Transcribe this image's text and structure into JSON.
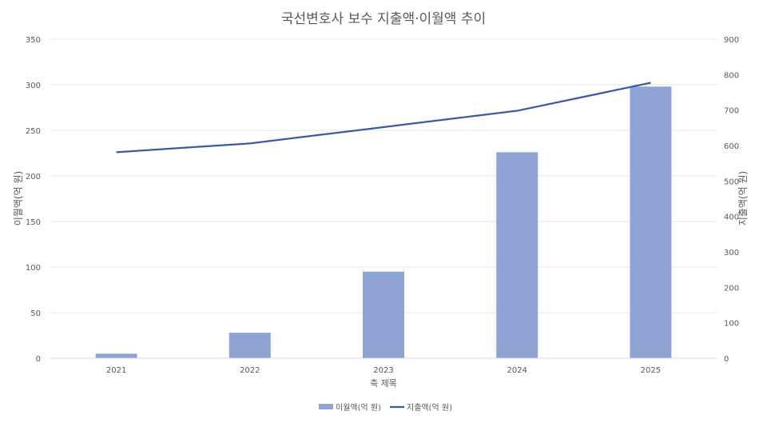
{
  "chart_data": {
    "type": "bar+line",
    "title": "국선변호사 보수 지출액·이월액 추이",
    "xlabel": "축 제목",
    "ylabel_left": "이월액(억 원)",
    "ylabel_right": "지출액(억 원)",
    "categories": [
      "2021",
      "2022",
      "2023",
      "2024",
      "2025"
    ],
    "ylim_left": [
      0,
      350
    ],
    "yticks_left": [
      "0",
      "50",
      "100",
      "150",
      "200",
      "250",
      "300",
      "350"
    ],
    "ylim_right": [
      0,
      900
    ],
    "yticks_right": [
      "0",
      "100",
      "200",
      "300",
      "400",
      "500",
      "600",
      "700",
      "800",
      "900"
    ],
    "series": [
      {
        "name": "이월액(억 원)",
        "type": "bar",
        "axis": "left",
        "color": "#8FA4D4",
        "values": [
          5,
          28,
          95,
          226,
          298
        ]
      },
      {
        "name": "지출액(억 원)",
        "type": "line",
        "axis": "right",
        "color": "#3A5BA0",
        "values": [
          581,
          606,
          652,
          698,
          777
        ]
      }
    ],
    "grid": true,
    "legend": "bottom"
  }
}
